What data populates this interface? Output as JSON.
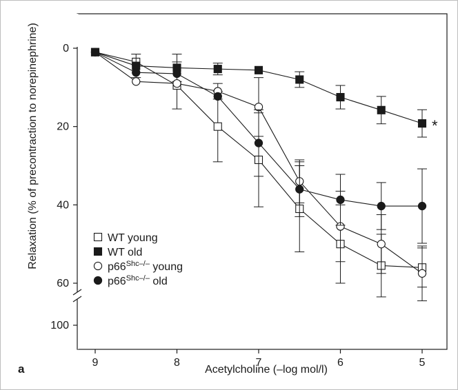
{
  "panel_label": "a",
  "chart_data": {
    "type": "line",
    "xlabel": "Acetylcholine (–log mol/l)",
    "ylabel": "Relaxation (% of precontraction to norepinephrine)",
    "x": [
      9,
      8.5,
      8,
      7.5,
      7,
      6.5,
      6,
      5.5,
      5
    ],
    "x_ticks": [
      9,
      8,
      7,
      6,
      5
    ],
    "x_tick_labels": [
      "9",
      "8",
      "7",
      "6",
      "5"
    ],
    "xlim": [
      9,
      5
    ],
    "ylim": [
      0,
      60
    ],
    "y_ticks": [
      0,
      20,
      40,
      60
    ],
    "y_tick_labels": [
      "0",
      "20",
      "40",
      "60"
    ],
    "y_break": true,
    "y_extra_tick": 100,
    "y_extra_tick_label": "100",
    "grid": false,
    "legend_position": "bottom-left",
    "annotation": {
      "text": "*",
      "near_series": "WT old",
      "x": 5
    },
    "series": [
      {
        "name": "WT young",
        "legend_main": "WT young",
        "marker": "open-square",
        "values": [
          1,
          3.5,
          9.5,
          20,
          28.5,
          41,
          50,
          55.5,
          56
        ],
        "errors": [
          0,
          0,
          6,
          9,
          12,
          11,
          10,
          8,
          5
        ]
      },
      {
        "name": "WT old",
        "legend_main": "WT old",
        "marker": "filled-square",
        "values": [
          1,
          4.5,
          5,
          5.3,
          5.6,
          8,
          12.5,
          15.8,
          19.2
        ],
        "errors": [
          0,
          3,
          3.5,
          1.5,
          0,
          2,
          3,
          3.5,
          3.5
        ]
      },
      {
        "name": "p66Shc–/– young",
        "legend_main": "p66",
        "legend_sup": "Shc–/–",
        "legend_rest": " young",
        "marker": "open-circle",
        "values": [
          1,
          8.5,
          9,
          11,
          15,
          34,
          45.5,
          50,
          57.5
        ],
        "errors": [
          0,
          0,
          0,
          2,
          7.5,
          5.5,
          9,
          7.5,
          7
        ]
      },
      {
        "name": "p66Shc–/– old",
        "legend_main": "p66",
        "legend_sup": "Shc–/–",
        "legend_rest": " old",
        "marker": "filled-circle",
        "values": [
          1,
          6.2,
          6.5,
          12.3,
          24.2,
          36,
          38.7,
          40.3,
          40.3
        ],
        "errors": [
          0,
          0,
          0,
          0,
          8.5,
          7,
          6.5,
          6,
          9.5
        ]
      }
    ]
  }
}
